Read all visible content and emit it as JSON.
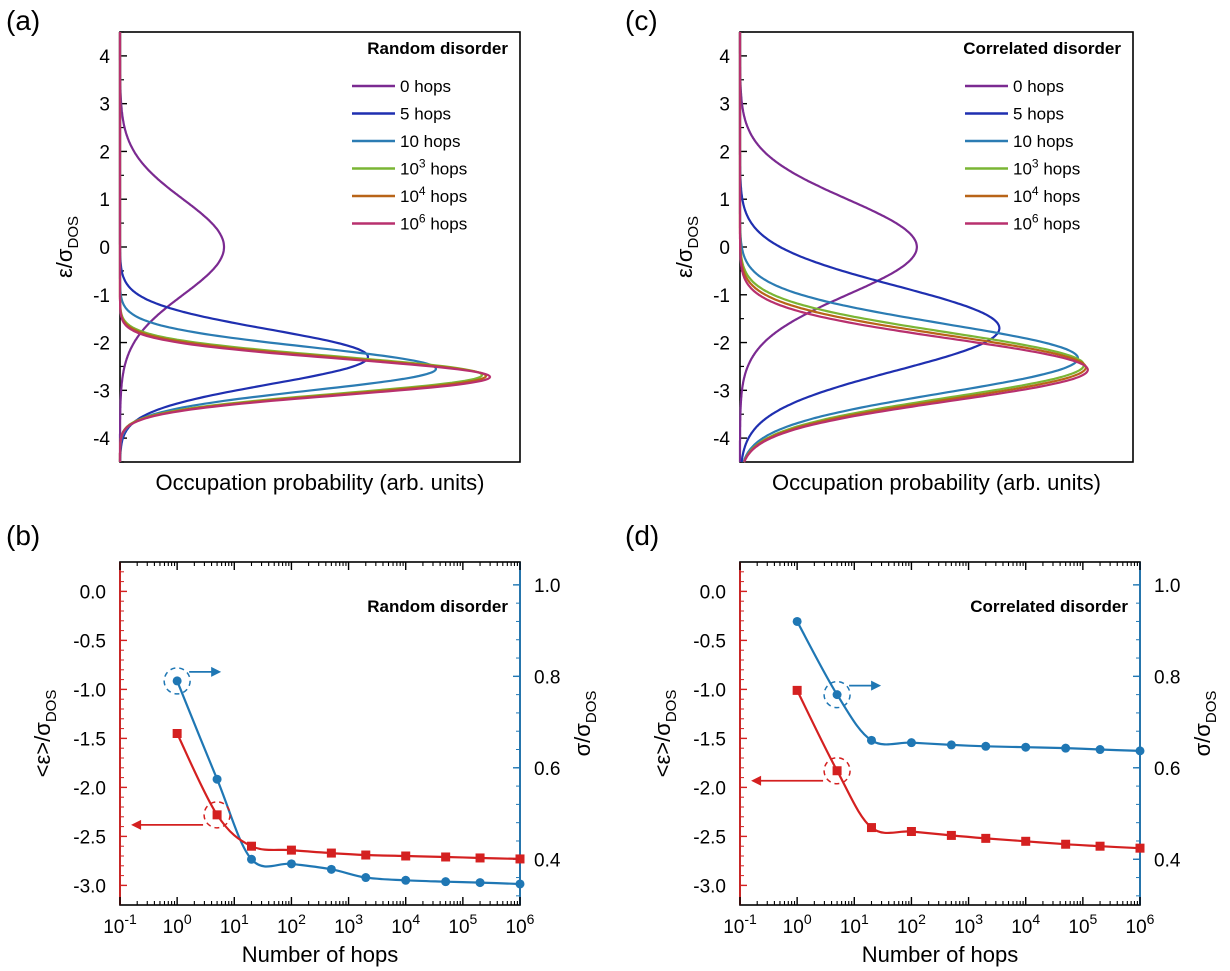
{
  "colors": {
    "red_axis": "#d42020",
    "blue_axis": "#1f77b4",
    "hops_0": "#7b2a91",
    "hops_5": "#1f2fb0",
    "hops_10": "#2b7cb3",
    "hops_1e3": "#7ab534",
    "hops_1e4": "#b86418",
    "hops_1e6": "#b8306e"
  },
  "chart_data": [
    {
      "panel": "(a)",
      "type": "line",
      "legend_title": "Random disorder",
      "legend_position": "top-right",
      "xlabel": "Occupation probability (arb. units)",
      "ylabel": "ε/σ_DOS",
      "ylim": [
        -4.5,
        4.5
      ],
      "yticks": [
        "4",
        "3",
        "2",
        "1",
        "0",
        "-1",
        "-2",
        "-3",
        "-4"
      ],
      "ytick_values": [
        4,
        3,
        2,
        1,
        0,
        -1,
        -2,
        -3,
        -4
      ],
      "series": [
        {
          "name": "0 hops",
          "base": "0",
          "exp": "",
          "suffix": " hops",
          "color_key": "hops_0",
          "peak_y": 0.0,
          "sigma": 1.0,
          "peak_x": 0.26
        },
        {
          "name": "5 hops",
          "base": "5",
          "exp": "",
          "suffix": " hops",
          "color_key": "hops_5",
          "peak_y": -2.3,
          "sigma": 0.57,
          "peak_x": 0.62
        },
        {
          "name": "10 hops",
          "base": "10",
          "exp": "",
          "suffix": " hops",
          "color_key": "hops_10",
          "peak_y": -2.55,
          "sigma": 0.45,
          "peak_x": 0.79
        },
        {
          "name": "10^3 hops",
          "base": "10",
          "exp": "3",
          "suffix": " hops",
          "color_key": "hops_1e3",
          "peak_y": -2.68,
          "sigma": 0.385,
          "peak_x": 0.905
        },
        {
          "name": "10^4 hops",
          "base": "10",
          "exp": "4",
          "suffix": " hops",
          "color_key": "hops_1e4",
          "peak_y": -2.7,
          "sigma": 0.38,
          "peak_x": 0.915
        },
        {
          "name": "10^6 hops",
          "base": "10",
          "exp": "6",
          "suffix": " hops",
          "color_key": "hops_1e6",
          "peak_y": -2.72,
          "sigma": 0.375,
          "peak_x": 0.925
        }
      ]
    },
    {
      "panel": "(b)",
      "type": "line",
      "legend_title": "Random disorder",
      "xlabel": "Number of hops",
      "ylabel_left": "<ε>/σ_DOS",
      "ylabel_right": "σ/σ_DOS",
      "xlim_log10": [
        -1,
        6
      ],
      "xtick_exps": [
        "-1",
        "0",
        "1",
        "2",
        "3",
        "4",
        "5",
        "6"
      ],
      "ylim_left": [
        -3.2,
        0.3
      ],
      "yticks_left": [
        "0.0",
        "-0.5",
        "-1.0",
        "-1.5",
        "-2.0",
        "-2.5",
        "-3.0"
      ],
      "ytick_values_left": [
        0.0,
        -0.5,
        -1.0,
        -1.5,
        -2.0,
        -2.5,
        -3.0
      ],
      "ylim_right": [
        0.3,
        1.05
      ],
      "yticks_right": [
        "1.0",
        "0.8",
        "0.6",
        "0.4"
      ],
      "ytick_values_right": [
        1.0,
        0.8,
        0.6,
        0.4
      ],
      "x": [
        1,
        5,
        20,
        100,
        500,
        2000,
        10000,
        50000,
        200000,
        1000000
      ],
      "mean_energy": [
        -1.45,
        -2.28,
        -2.6,
        -2.64,
        -2.67,
        -2.69,
        -2.7,
        -2.71,
        -2.72,
        -2.73
      ],
      "sigma": [
        0.79,
        0.575,
        0.4,
        0.39,
        0.378,
        0.36,
        0.354,
        0.351,
        0.349,
        0.346
      ],
      "mean_marker_index": 1,
      "sigma_marker_index": 0,
      "mean_arrow_direction": "left",
      "sigma_arrow_direction": "right"
    },
    {
      "panel": "(c)",
      "type": "line",
      "legend_title": "Correlated disorder",
      "legend_position": "top-right",
      "xlabel": "Occupation probability (arb. units)",
      "ylabel": "ε/σ_DOS",
      "ylim": [
        -4.5,
        4.5
      ],
      "yticks": [
        "4",
        "3",
        "2",
        "1",
        "0",
        "-1",
        "-2",
        "-3",
        "-4"
      ],
      "ytick_values": [
        4,
        3,
        2,
        1,
        0,
        -1,
        -2,
        -3,
        -4
      ],
      "series": [
        {
          "name": "0 hops",
          "base": "0",
          "exp": "",
          "suffix": " hops",
          "color_key": "hops_0",
          "peak_y": 0.0,
          "sigma": 1.0,
          "peak_x": 0.45
        },
        {
          "name": "5 hops",
          "base": "5",
          "exp": "",
          "suffix": " hops",
          "color_key": "hops_5",
          "peak_y": -1.7,
          "sigma": 0.88,
          "peak_x": 0.66
        },
        {
          "name": "10 hops",
          "base": "10",
          "exp": "",
          "suffix": " hops",
          "color_key": "hops_10",
          "peak_y": -2.33,
          "sigma": 0.72,
          "peak_x": 0.86
        },
        {
          "name": "10^3 hops",
          "base": "10",
          "exp": "3",
          "suffix": " hops",
          "color_key": "hops_1e3",
          "peak_y": -2.47,
          "sigma": 0.68,
          "peak_x": 0.875
        },
        {
          "name": "10^4 hops",
          "base": "10",
          "exp": "4",
          "suffix": " hops",
          "color_key": "hops_1e4",
          "peak_y": -2.52,
          "sigma": 0.665,
          "peak_x": 0.88
        },
        {
          "name": "10^6 hops",
          "base": "10",
          "exp": "6",
          "suffix": " hops",
          "color_key": "hops_1e6",
          "peak_y": -2.57,
          "sigma": 0.65,
          "peak_x": 0.885
        }
      ]
    },
    {
      "panel": "(d)",
      "type": "line",
      "legend_title": "Correlated disorder",
      "xlabel": "Number of hops",
      "ylabel_left": "<ε>/σ_DOS",
      "ylabel_right": "σ/σ_DOS",
      "xlim_log10": [
        -1,
        6
      ],
      "xtick_exps": [
        "-1",
        "0",
        "1",
        "2",
        "3",
        "4",
        "5",
        "6"
      ],
      "ylim_left": [
        -3.2,
        0.3
      ],
      "yticks_left": [
        "0.0",
        "-0.5",
        "-1.0",
        "-1.5",
        "-2.0",
        "-2.5",
        "-3.0"
      ],
      "ytick_values_left": [
        0.0,
        -0.5,
        -1.0,
        -1.5,
        -2.0,
        -2.5,
        -3.0
      ],
      "ylim_right": [
        0.3,
        1.05
      ],
      "yticks_right": [
        "1.0",
        "0.8",
        "0.6",
        "0.4"
      ],
      "ytick_values_right": [
        1.0,
        0.8,
        0.6,
        0.4
      ],
      "x": [
        1,
        5,
        20,
        100,
        500,
        2000,
        10000,
        50000,
        200000,
        1000000
      ],
      "mean_energy": [
        -1.01,
        -1.83,
        -2.41,
        -2.45,
        -2.49,
        -2.52,
        -2.55,
        -2.58,
        -2.6,
        -2.62
      ],
      "sigma": [
        0.92,
        0.76,
        0.66,
        0.655,
        0.65,
        0.647,
        0.645,
        0.643,
        0.64,
        0.637
      ],
      "mean_marker_index": 1,
      "sigma_marker_index": 1,
      "mean_arrow_direction": "left",
      "sigma_arrow_direction": "right"
    }
  ]
}
